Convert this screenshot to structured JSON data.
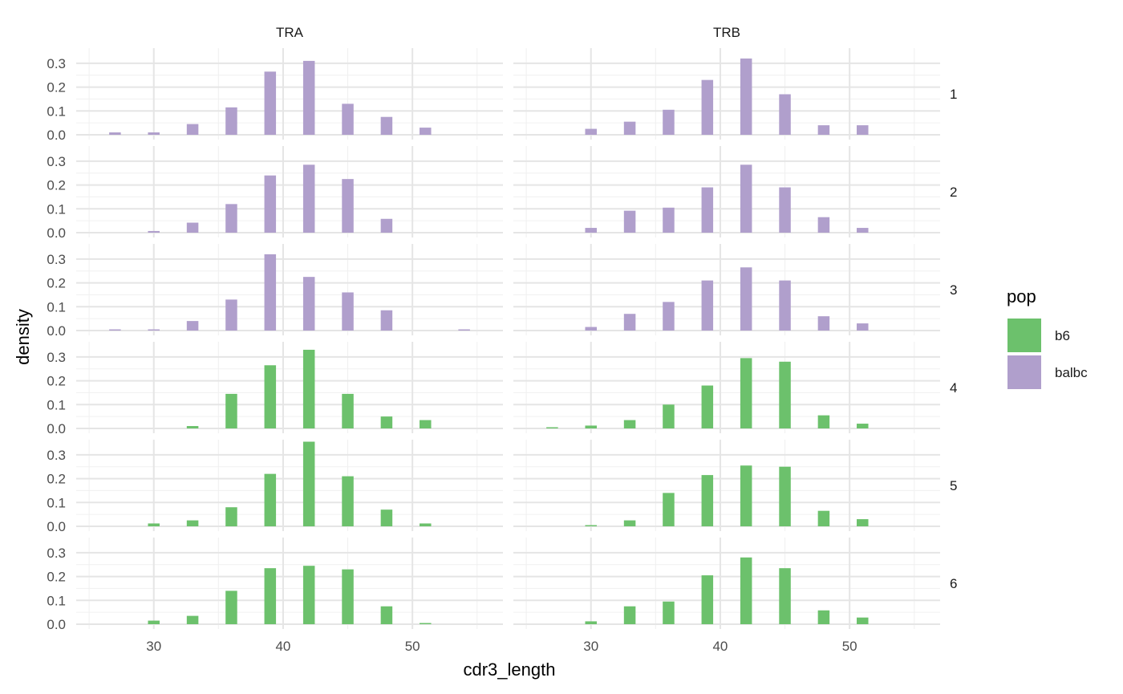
{
  "chart_data": {
    "type": "bar",
    "subtype": "faceted-histogram",
    "xlabel": "cdr3_length",
    "ylabel": "density",
    "xlim": [
      24,
      57
    ],
    "ylim": [
      0,
      0.35
    ],
    "x_ticks": [
      30,
      40,
      50
    ],
    "y_ticks": [
      0.0,
      0.1,
      0.2,
      0.3
    ],
    "x_tick_labels": [
      "30",
      "40",
      "50"
    ],
    "y_tick_labels": [
      "0.0",
      "0.1",
      "0.2",
      "0.3"
    ],
    "grid": true,
    "legend": {
      "title": "pop",
      "position": "right",
      "entries": [
        {
          "label": "b6",
          "color": "#6CC16C"
        },
        {
          "label": "balbc",
          "color": "#B09FCC"
        }
      ]
    },
    "col_facets": [
      "TRA",
      "TRB"
    ],
    "row_facets": [
      "1",
      "2",
      "3",
      "4",
      "5",
      "6"
    ],
    "x": [
      27,
      30,
      33,
      36,
      39,
      42,
      45,
      48,
      51,
      54
    ],
    "panels": [
      {
        "row": "1",
        "col": "TRA",
        "pop": "balbc",
        "values": [
          0.01,
          0.01,
          0.045,
          0.115,
          0.265,
          0.31,
          0.13,
          0.075,
          0.03,
          0
        ]
      },
      {
        "row": "1",
        "col": "TRB",
        "pop": "balbc",
        "values": [
          0,
          0.025,
          0.055,
          0.105,
          0.23,
          0.32,
          0.17,
          0.04,
          0.04,
          0
        ]
      },
      {
        "row": "2",
        "col": "TRA",
        "pop": "balbc",
        "values": [
          0,
          0.007,
          0.042,
          0.12,
          0.24,
          0.285,
          0.225,
          0.058,
          0,
          0
        ]
      },
      {
        "row": "2",
        "col": "TRB",
        "pop": "balbc",
        "values": [
          0,
          0.02,
          0.092,
          0.105,
          0.19,
          0.285,
          0.19,
          0.065,
          0.02,
          0
        ]
      },
      {
        "row": "3",
        "col": "TRA",
        "pop": "balbc",
        "values": [
          0.005,
          0.005,
          0.04,
          0.13,
          0.32,
          0.225,
          0.16,
          0.085,
          0,
          0.005
        ]
      },
      {
        "row": "3",
        "col": "TRB",
        "pop": "balbc",
        "values": [
          0,
          0.015,
          0.07,
          0.12,
          0.21,
          0.265,
          0.21,
          0.06,
          0.03,
          0
        ]
      },
      {
        "row": "4",
        "col": "TRA",
        "pop": "b6",
        "values": [
          0,
          0,
          0.01,
          0.145,
          0.265,
          0.33,
          0.145,
          0.05,
          0.035,
          0
        ]
      },
      {
        "row": "4",
        "col": "TRB",
        "pop": "b6",
        "values": [
          0.005,
          0.012,
          0.035,
          0.1,
          0.18,
          0.295,
          0.28,
          0.055,
          0.02,
          0
        ]
      },
      {
        "row": "5",
        "col": "TRA",
        "pop": "b6",
        "values": [
          0,
          0.012,
          0.025,
          0.08,
          0.22,
          0.355,
          0.21,
          0.07,
          0.012,
          0
        ]
      },
      {
        "row": "5",
        "col": "TRB",
        "pop": "b6",
        "values": [
          0,
          0.005,
          0.025,
          0.14,
          0.215,
          0.255,
          0.25,
          0.065,
          0.03,
          0
        ]
      },
      {
        "row": "6",
        "col": "TRA",
        "pop": "b6",
        "values": [
          0,
          0.015,
          0.035,
          0.14,
          0.235,
          0.245,
          0.23,
          0.075,
          0.005,
          0
        ]
      },
      {
        "row": "6",
        "col": "TRB",
        "pop": "b6",
        "values": [
          0,
          0.012,
          0.075,
          0.095,
          0.205,
          0.28,
          0.235,
          0.058,
          0.028,
          0
        ]
      }
    ]
  }
}
